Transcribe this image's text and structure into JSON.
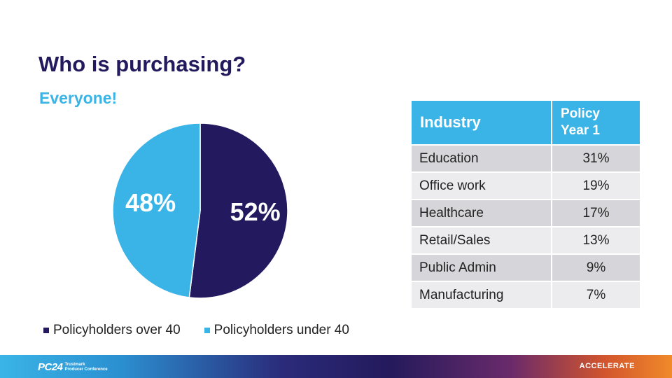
{
  "slide": {
    "title": "Who is purchasing?",
    "subtitle": "Everyone!"
  },
  "chart_data": {
    "type": "pie",
    "categories": [
      "Policyholders over 40",
      "Policyholders under 40"
    ],
    "values": [
      52,
      48
    ],
    "data_labels": [
      "52%",
      "48%"
    ],
    "colors": [
      "#22195e",
      "#3ab4e6"
    ],
    "legend_position": "bottom-left"
  },
  "table": {
    "headers": [
      "Industry",
      "Policy Year 1"
    ],
    "rows": [
      [
        "Education",
        "31%"
      ],
      [
        "Office work",
        "19%"
      ],
      [
        "Healthcare",
        "17%"
      ],
      [
        "Retail/Sales",
        "13%"
      ],
      [
        "Public Admin",
        "9%"
      ],
      [
        "Manufacturing",
        "7%"
      ]
    ]
  },
  "footer": {
    "logo_text": "PC24",
    "logo_subtext_line1": "Trustmark",
    "logo_subtext_line2": "Producer Conference",
    "tagline": "ACCELERATE"
  }
}
